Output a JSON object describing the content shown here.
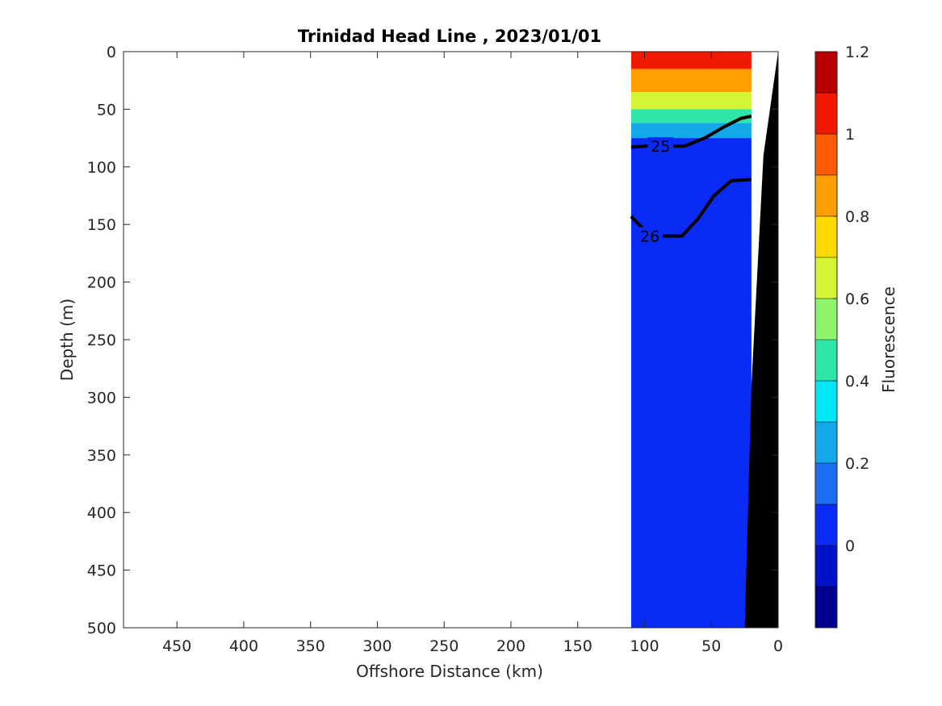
{
  "chart_data": {
    "type": "heatmap",
    "title": "Trinidad Head Line , 2023/01/01",
    "xlabel": "Offshore Distance (km)",
    "ylabel": "Depth (m)",
    "xlim": [
      490,
      0
    ],
    "ylim": [
      0,
      500
    ],
    "x_reversed": true,
    "y_reversed": true,
    "x_ticks": [
      450,
      400,
      350,
      300,
      250,
      200,
      150,
      100,
      50,
      0
    ],
    "y_ticks": [
      0,
      50,
      100,
      150,
      200,
      250,
      300,
      350,
      400,
      450,
      500
    ],
    "colorbar": {
      "label": "Fluorescence",
      "range": [
        -0.2,
        1.2
      ],
      "ticks": [
        1.2,
        1,
        0.8,
        0.6,
        0.4,
        0.2,
        0
      ],
      "levels": [
        {
          "from": -0.2,
          "to": -0.1,
          "color": "#00008f"
        },
        {
          "from": -0.1,
          "to": 0.0,
          "color": "#0012c8"
        },
        {
          "from": 0.0,
          "to": 0.1,
          "color": "#0a2bf5"
        },
        {
          "from": 0.1,
          "to": 0.2,
          "color": "#1a6ef2"
        },
        {
          "from": 0.2,
          "to": 0.3,
          "color": "#14a8ea"
        },
        {
          "from": 0.3,
          "to": 0.4,
          "color": "#00e6f5"
        },
        {
          "from": 0.4,
          "to": 0.5,
          "color": "#2ee6aa"
        },
        {
          "from": 0.5,
          "to": 0.6,
          "color": "#8ef56a"
        },
        {
          "from": 0.6,
          "to": 0.7,
          "color": "#d4f533"
        },
        {
          "from": 0.7,
          "to": 0.8,
          "color": "#ffd800"
        },
        {
          "from": 0.8,
          "to": 0.9,
          "color": "#ff9e00"
        },
        {
          "from": 0.9,
          "to": 1.0,
          "color": "#ff5a00"
        },
        {
          "from": 1.0,
          "to": 1.1,
          "color": "#f01a00"
        },
        {
          "from": 1.1,
          "to": 1.2,
          "color": "#b80000"
        }
      ]
    },
    "data_extent_km": [
      110,
      20
    ],
    "fluorescence_layers": [
      {
        "depth": [
          0,
          15
        ],
        "value": 1.05
      },
      {
        "depth": [
          15,
          35
        ],
        "value": 0.85
      },
      {
        "depth": [
          35,
          50
        ],
        "value": 0.6
      },
      {
        "depth": [
          50,
          62
        ],
        "value": 0.4
      },
      {
        "depth": [
          62,
          75
        ],
        "value": 0.25
      },
      {
        "depth": [
          75,
          500
        ],
        "value": 0.05
      }
    ],
    "density_contours": [
      {
        "label": "25",
        "label_at": [
          88,
          82
        ],
        "points": [
          [
            110,
            83
          ],
          [
            100,
            82
          ],
          [
            88,
            82
          ],
          [
            70,
            82
          ],
          [
            55,
            75
          ],
          [
            40,
            65
          ],
          [
            28,
            58
          ],
          [
            20,
            56
          ]
        ]
      },
      {
        "label": "26",
        "label_at": [
          96,
          160
        ],
        "points": [
          [
            110,
            143
          ],
          [
            100,
            155
          ],
          [
            88,
            160
          ],
          [
            72,
            160
          ],
          [
            60,
            145
          ],
          [
            48,
            125
          ],
          [
            35,
            112
          ],
          [
            20,
            111
          ]
        ]
      }
    ],
    "bathymetry": [
      [
        0,
        0
      ],
      [
        11,
        90
      ],
      [
        20,
        290
      ],
      [
        25,
        500
      ]
    ]
  }
}
